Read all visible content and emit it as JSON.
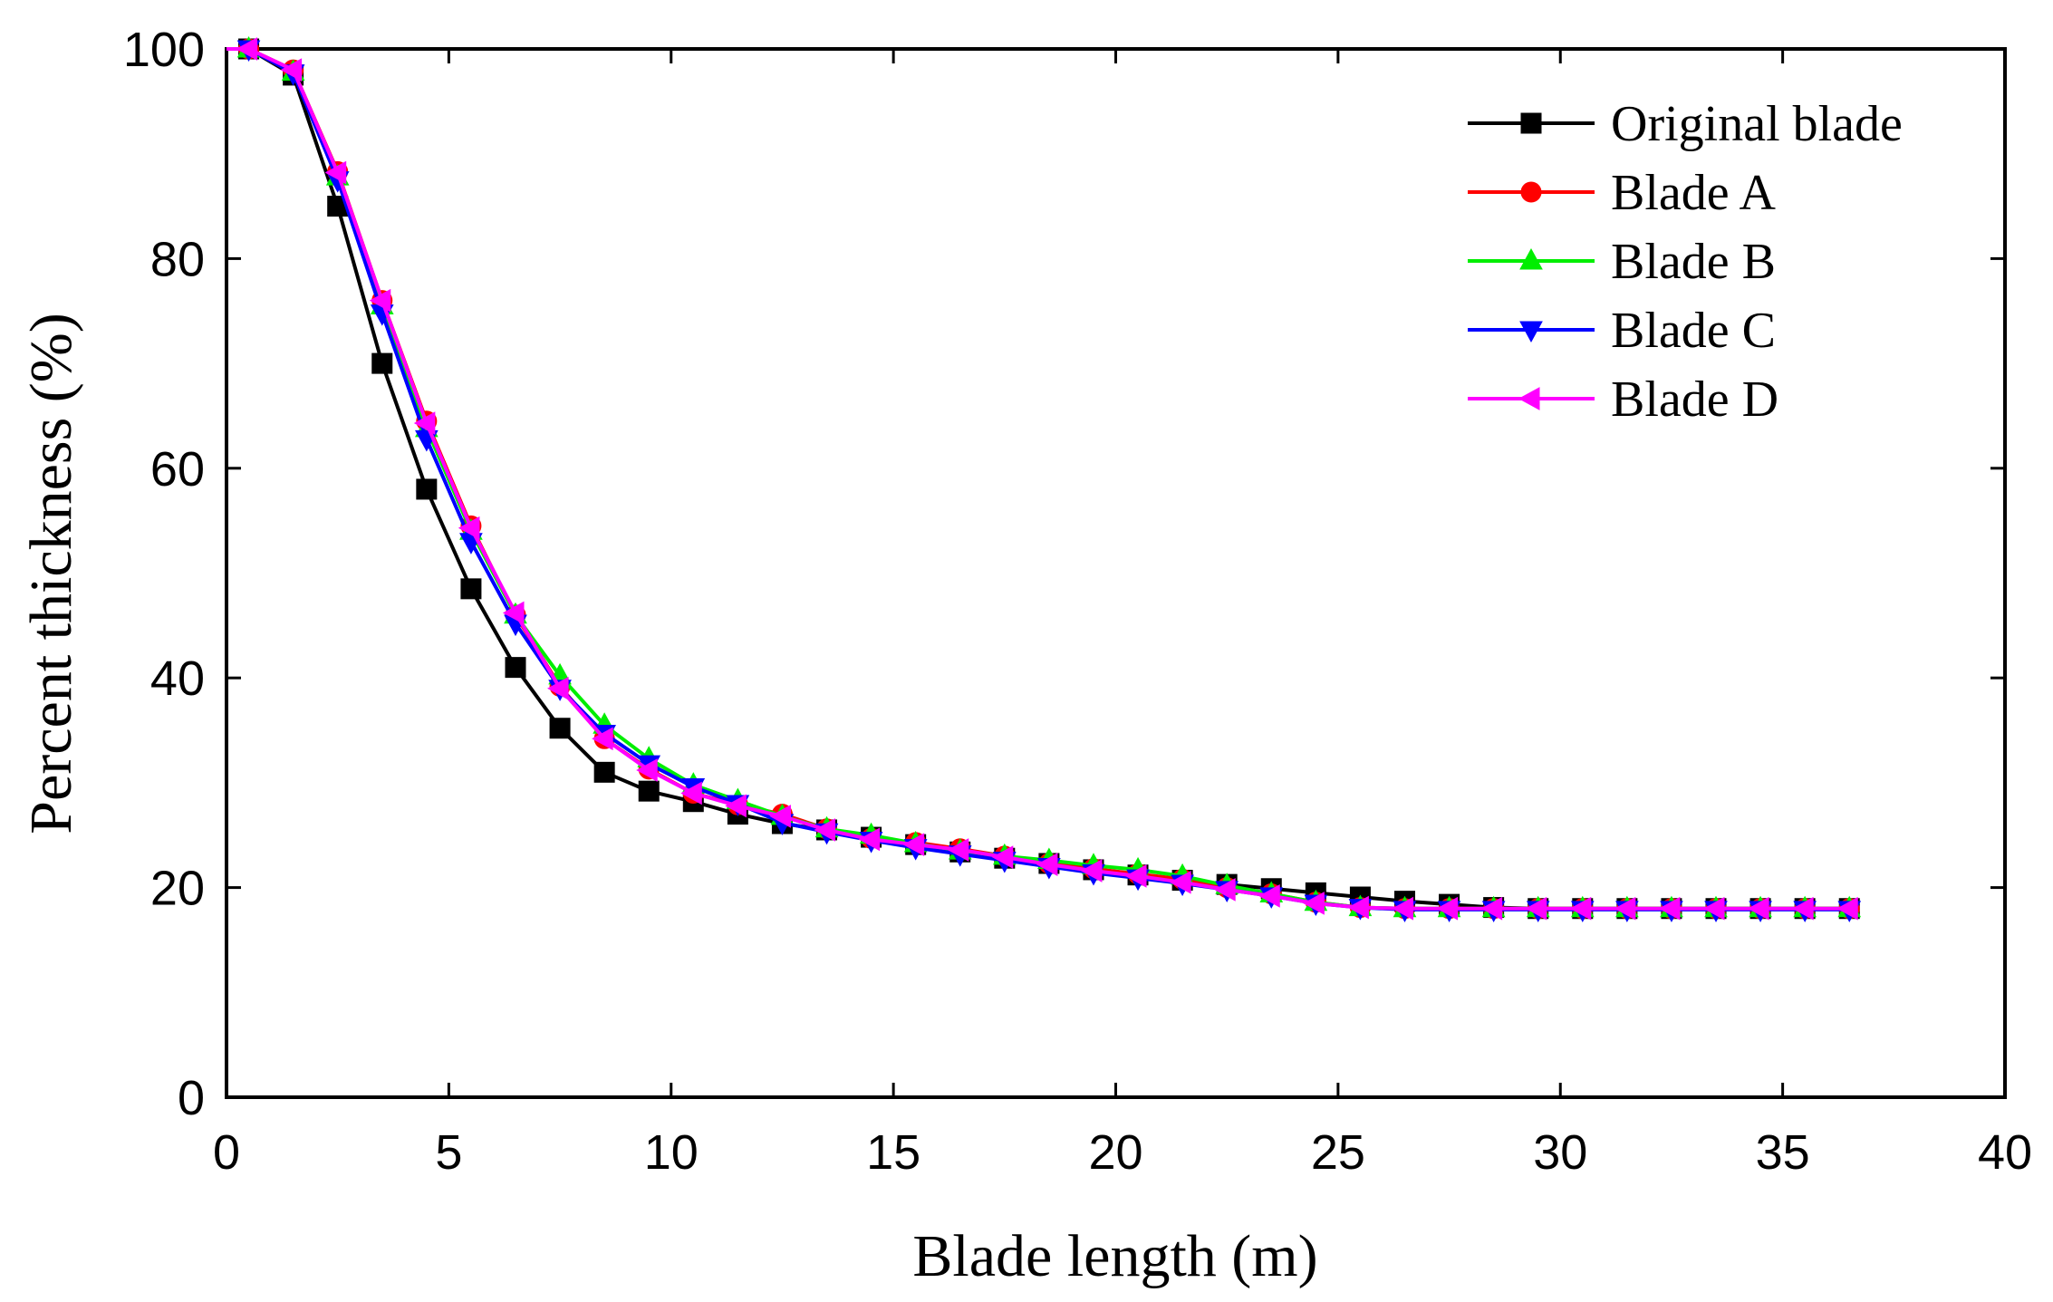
{
  "chart_data": {
    "type": "line",
    "title": "",
    "xlabel": "Blade length (m)",
    "ylabel": "Percent thickness (%)",
    "xlim": [
      0,
      40
    ],
    "ylim": [
      0,
      100
    ],
    "xticks": [
      0,
      5,
      10,
      15,
      20,
      25,
      30,
      35,
      40
    ],
    "yticks": [
      0,
      20,
      40,
      60,
      80,
      100
    ],
    "xtick_labels": [
      "0",
      "5",
      "10",
      "15",
      "20",
      "25",
      "30",
      "35",
      "40"
    ],
    "ytick_labels": [
      "0",
      "20",
      "40",
      "60",
      "80",
      "100"
    ],
    "grid": false,
    "legend_position": "top-right",
    "x": [
      0.5,
      1.5,
      2.5,
      3.5,
      4.5,
      5.5,
      6.5,
      7.5,
      8.5,
      9.5,
      10.5,
      11.5,
      12.5,
      13.5,
      14.5,
      15.5,
      16.5,
      17.5,
      18.5,
      19.5,
      20.5,
      21.5,
      22.5,
      23.5,
      24.5,
      25.5,
      26.5,
      27.5,
      28.5,
      29.5,
      30.5,
      31.5,
      32.5,
      33.5,
      34.5,
      35.5,
      36.5
    ],
    "series": [
      {
        "name": "Original blade",
        "color": "#000000",
        "marker": "square",
        "values": [
          100,
          97.5,
          85,
          70,
          58,
          48.5,
          41,
          35.2,
          31,
          29.2,
          28.2,
          27,
          26.1,
          25.5,
          24.8,
          24.1,
          23.4,
          22.8,
          22.3,
          21.7,
          21.2,
          20.7,
          20.3,
          19.9,
          19.5,
          19.1,
          18.7,
          18.4,
          18.1,
          18,
          18,
          18,
          18,
          18,
          18,
          18,
          18
        ]
      },
      {
        "name": "Blade A",
        "color": "#ff0000",
        "marker": "circle",
        "values": [
          100,
          98,
          88.3,
          76,
          64.5,
          54.5,
          46,
          39.2,
          34.2,
          31.3,
          29,
          27.9,
          27,
          25.6,
          24.7,
          24.3,
          23.7,
          23,
          22.3,
          21.8,
          21.3,
          20.8,
          20,
          19.4,
          18.6,
          18.1,
          18,
          18,
          18,
          18,
          18,
          18,
          18,
          18,
          18,
          18,
          18
        ]
      },
      {
        "name": "Blade B",
        "color": "#00ee00",
        "marker": "triangle-up",
        "values": [
          100,
          97.8,
          87.8,
          75.5,
          63.8,
          54,
          46,
          40.2,
          35.5,
          32.3,
          29.8,
          28.3,
          26.8,
          25.6,
          25,
          24.2,
          23.5,
          23,
          22.6,
          22.1,
          21.7,
          21.1,
          20.2,
          19.4,
          18.6,
          18.1,
          18,
          18,
          18,
          18,
          18,
          18,
          18,
          18,
          18,
          18,
          18
        ]
      },
      {
        "name": "Blade C",
        "color": "#0000ff",
        "marker": "triangle-down",
        "values": [
          100,
          97.7,
          87.5,
          74.8,
          62.8,
          53,
          45.2,
          39,
          34.7,
          31.8,
          29.6,
          28,
          26.2,
          25.3,
          24.5,
          23.8,
          23.2,
          22.6,
          22,
          21.4,
          20.9,
          20.4,
          19.8,
          19.2,
          18.5,
          18.1,
          17.9,
          17.9,
          17.9,
          17.9,
          17.9,
          17.9,
          17.9,
          17.9,
          17.9,
          17.9,
          17.9
        ]
      },
      {
        "name": "Blade D",
        "color": "#ff00ff",
        "marker": "triangle-left",
        "values": [
          100,
          98,
          88.2,
          76,
          64.3,
          54.3,
          46.2,
          39,
          34.2,
          31.2,
          29,
          27.8,
          26.8,
          25.5,
          24.6,
          24.1,
          23.6,
          22.9,
          22.2,
          21.6,
          21.1,
          20.5,
          19.8,
          19.2,
          18.5,
          18.1,
          18,
          18,
          18,
          18,
          18,
          18,
          18,
          18,
          18,
          18,
          18
        ]
      }
    ]
  }
}
